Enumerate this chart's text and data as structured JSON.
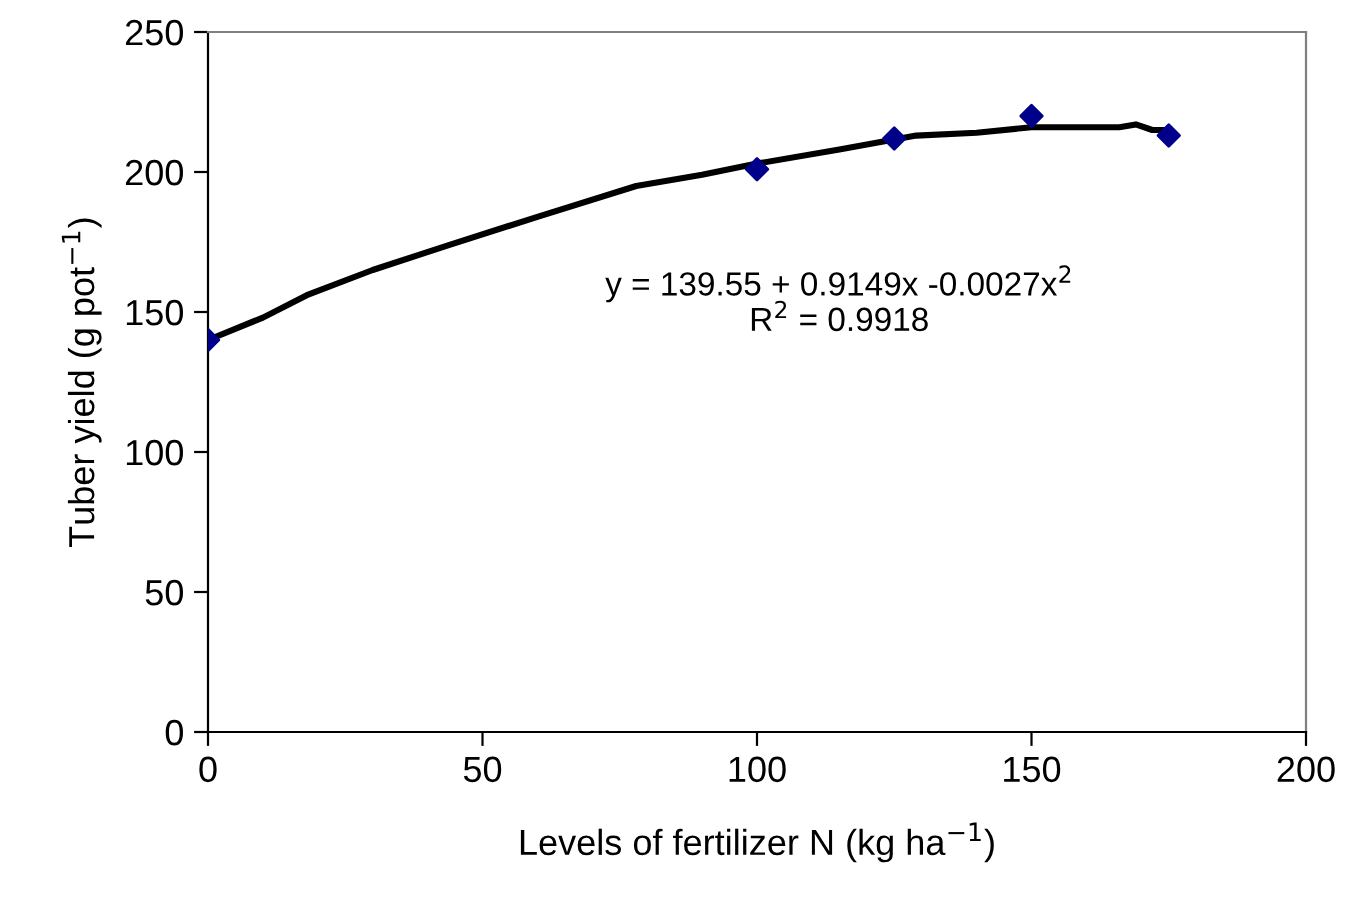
{
  "chart_data": {
    "type": "scatter",
    "xlabel": "Levels of fertilizer N (kg ha$^{−1}$)",
    "ylabel": "Tuber yield (g pot$^{−1}$)",
    "xlim": [
      0,
      200
    ],
    "ylim": [
      0,
      250
    ],
    "xticks": [
      0,
      50,
      100,
      150,
      200
    ],
    "yticks": [
      0,
      50,
      100,
      150,
      200,
      250
    ],
    "grid": false,
    "legend": false,
    "series": [
      {
        "color": "#00008b",
        "marker": "diamond",
        "x": [
          0,
          100,
          125,
          150,
          175
        ],
        "values": [
          140,
          201,
          212,
          220,
          213
        ]
      },
      {
        "type": "line",
        "color": "#000000",
        "marker": "none",
        "line_style": "solid",
        "x": [
          0,
          10,
          18,
          30,
          44,
          60,
          78,
          90,
          100,
          115,
          129,
          140,
          150,
          160,
          166,
          169,
          172,
          175
        ],
        "values": [
          140,
          148,
          156,
          165,
          174,
          184,
          195,
          199,
          203,
          208,
          213,
          214,
          216,
          216,
          216,
          217,
          215,
          215
        ]
      }
    ],
    "annotations": [
      "y = 139.55 + 0.9149x -0.0027x$^{2}$",
      "R$^{2}$ = 0.9918"
    ]
  }
}
